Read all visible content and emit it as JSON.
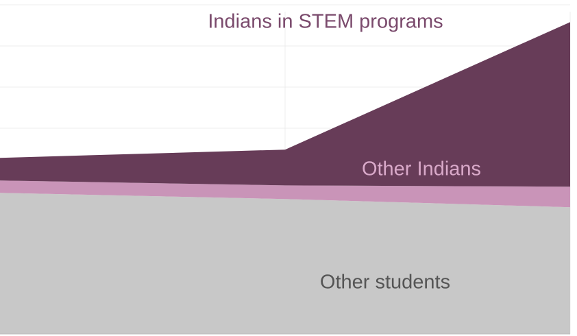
{
  "chart_data": {
    "type": "stacked-area",
    "categories": [
      null,
      null,
      null
    ],
    "series": [
      {
        "name": "Other students",
        "color": "#c8c8c8",
        "label_color": "#555555",
        "values": [
          3.43,
          3.28,
          3.08
        ]
      },
      {
        "name": "Other Indians",
        "color": "#c994b8",
        "label_color": "#d9a9c9",
        "values": [
          0.3,
          0.33,
          0.5
        ]
      },
      {
        "name": "Indians in STEM programs",
        "color": "#673c58",
        "label_color": "#7a4a6c",
        "values": [
          0.55,
          0.87,
          4.0
        ]
      }
    ],
    "ylim": [
      0,
      8
    ],
    "yticks": [
      0,
      1,
      2,
      3,
      4,
      5,
      6,
      7,
      8
    ],
    "grid": true
  }
}
